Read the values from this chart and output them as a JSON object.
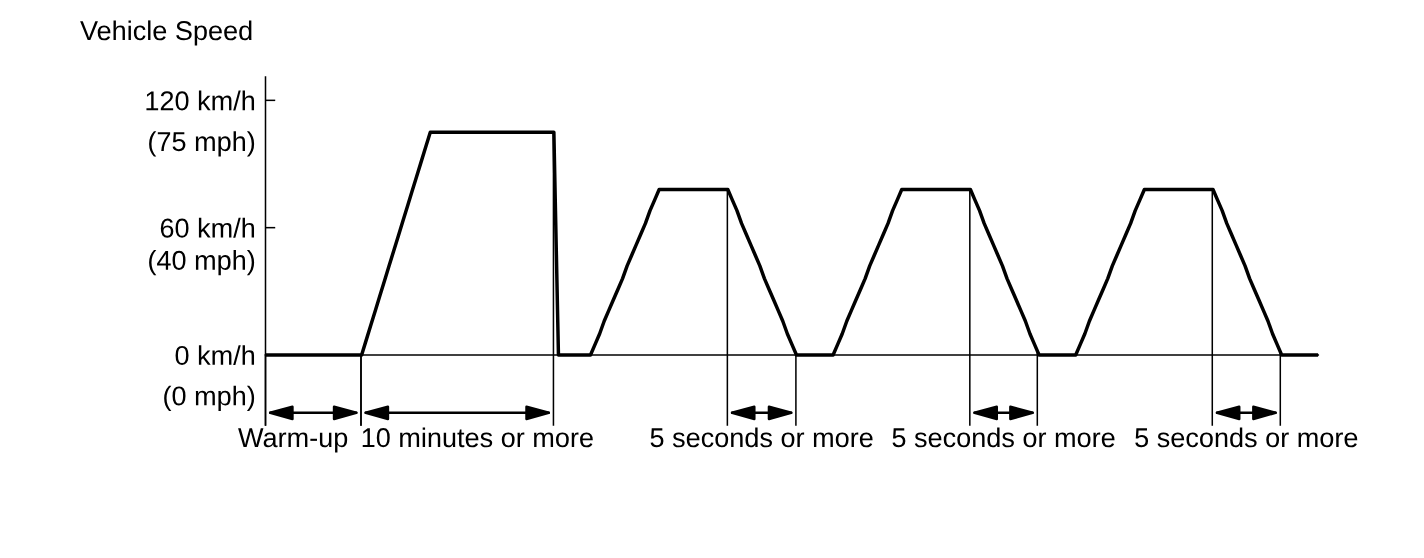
{
  "chart_data": {
    "type": "line",
    "ylabel": "Vehicle Speed",
    "categories": [
      null,
      null,
      null,
      null,
      null,
      null,
      null,
      null,
      null,
      null,
      null,
      null,
      null,
      null,
      null,
      null,
      null,
      null,
      null,
      null,
      null,
      null,
      null,
      null,
      null,
      null,
      null,
      null,
      null,
      null,
      null,
      null,
      null,
      null,
      null,
      null,
      null,
      null,
      null,
      null,
      null,
      null,
      null,
      null,
      null,
      null,
      null,
      null,
      null,
      null,
      null,
      null,
      null,
      null,
      null,
      null,
      null,
      null,
      null,
      null,
      null,
      null,
      null,
      null,
      null,
      null,
      null,
      null,
      null,
      null,
      null,
      null,
      null,
      null,
      null,
      null,
      null,
      null,
      null,
      null,
      null,
      null,
      null,
      null,
      null,
      null,
      null,
      null,
      null,
      null,
      null,
      null,
      null,
      null,
      null,
      null,
      null,
      null,
      null,
      null,
      null,
      null,
      null,
      null,
      null,
      null,
      null,
      null,
      null,
      null,
      null,
      null,
      null,
      null,
      null,
      null,
      null,
      null,
      null,
      null,
      null,
      null,
      null,
      null,
      null,
      null,
      null,
      null,
      null,
      null,
      null,
      null,
      null,
      null,
      null,
      null,
      null,
      null,
      null,
      null,
      null,
      null,
      null,
      null,
      null,
      null,
      null,
      null,
      null,
      null,
      null,
      null,
      null,
      null,
      null,
      null,
      null,
      null,
      null,
      null,
      null,
      null,
      null,
      null,
      null,
      null,
      null,
      null,
      null,
      null,
      null,
      null,
      null,
      null,
      null,
      null,
      null,
      null,
      null,
      null,
      null,
      null,
      null,
      null,
      null,
      null,
      null,
      null,
      null,
      null,
      null,
      null,
      null,
      null,
      null,
      null,
      null,
      null,
      null,
      null,
      null,
      null,
      null,
      null,
      null,
      null,
      null,
      null,
      null,
      null,
      null,
      null,
      null,
      null,
      null,
      null,
      null,
      null,
      null,
      null,
      null,
      null,
      null,
      null,
      null,
      null,
      null,
      null,
      null,
      null,
      null
    ],
    "series": [
      {
        "color": "#000000",
        "values": [
          0,
          0,
          0,
          0,
          0,
          0,
          0,
          0,
          0,
          0,
          0,
          0,
          0,
          0,
          0,
          0,
          0,
          0,
          0,
          0,
          0,
          0,
          7,
          14,
          21,
          28,
          35,
          42,
          49,
          56,
          63,
          70,
          77,
          84,
          91,
          98,
          105,
          105,
          105,
          105,
          105,
          105,
          105,
          105,
          105,
          105,
          105,
          105,
          105,
          105,
          105,
          105,
          105,
          105,
          105,
          105,
          105,
          105,
          105,
          105,
          105,
          105,
          105,
          105,
          0,
          0,
          0,
          0,
          0,
          0,
          0,
          0,
          5,
          10,
          16,
          21,
          26,
          31,
          36,
          42,
          47,
          52,
          57,
          62,
          68,
          73,
          78,
          78,
          78,
          78,
          78,
          78,
          78,
          78,
          78,
          78,
          78,
          78,
          78,
          78,
          78,
          78,
          73,
          68,
          62,
          57,
          52,
          47,
          42,
          36,
          31,
          26,
          21,
          16,
          10,
          5,
          0,
          0,
          0,
          0,
          0,
          0,
          0,
          0,
          0,
          5,
          10,
          16,
          21,
          26,
          31,
          36,
          42,
          47,
          52,
          57,
          62,
          68,
          73,
          78,
          78,
          78,
          78,
          78,
          78,
          78,
          78,
          78,
          78,
          78,
          78,
          78,
          78,
          78,
          78,
          73,
          68,
          62,
          57,
          52,
          47,
          42,
          36,
          31,
          26,
          21,
          16,
          10,
          5,
          0,
          0,
          0,
          0,
          0,
          0,
          0,
          0,
          0,
          5,
          10,
          16,
          21,
          26,
          31,
          36,
          42,
          47,
          52,
          57,
          62,
          68,
          73,
          78,
          78,
          78,
          78,
          78,
          78,
          78,
          78,
          78,
          78,
          78,
          78,
          78,
          78,
          78,
          78,
          73,
          68,
          62,
          57,
          52,
          47,
          42,
          36,
          31,
          26,
          21,
          16,
          10,
          5,
          0,
          0,
          0,
          0,
          0,
          0,
          0,
          0,
          0
        ]
      }
    ],
    "ylim": [
      -33,
      131
    ],
    "yticks": [
      {
        "value": 0,
        "label": "0 km/h"
      },
      {
        "value": 60,
        "label": "60 km/h"
      },
      {
        "value": 120,
        "label": "120 km/h"
      }
    ],
    "y2lim": [
      -8.7,
      93.9
    ],
    "y2ticks": [
      {
        "value": 0,
        "label": "(0 mph)"
      },
      {
        "value": 40,
        "label": "(40 mph)"
      },
      {
        "value": 75,
        "label": "(75 mph)"
      }
    ],
    "tick_labels": "y",
    "line_style": "solid",
    "annotations": [
      "Warm-up",
      "10 minutes or more",
      "5 seconds or more",
      "5 seconds or more",
      "5 seconds or more"
    ]
  }
}
